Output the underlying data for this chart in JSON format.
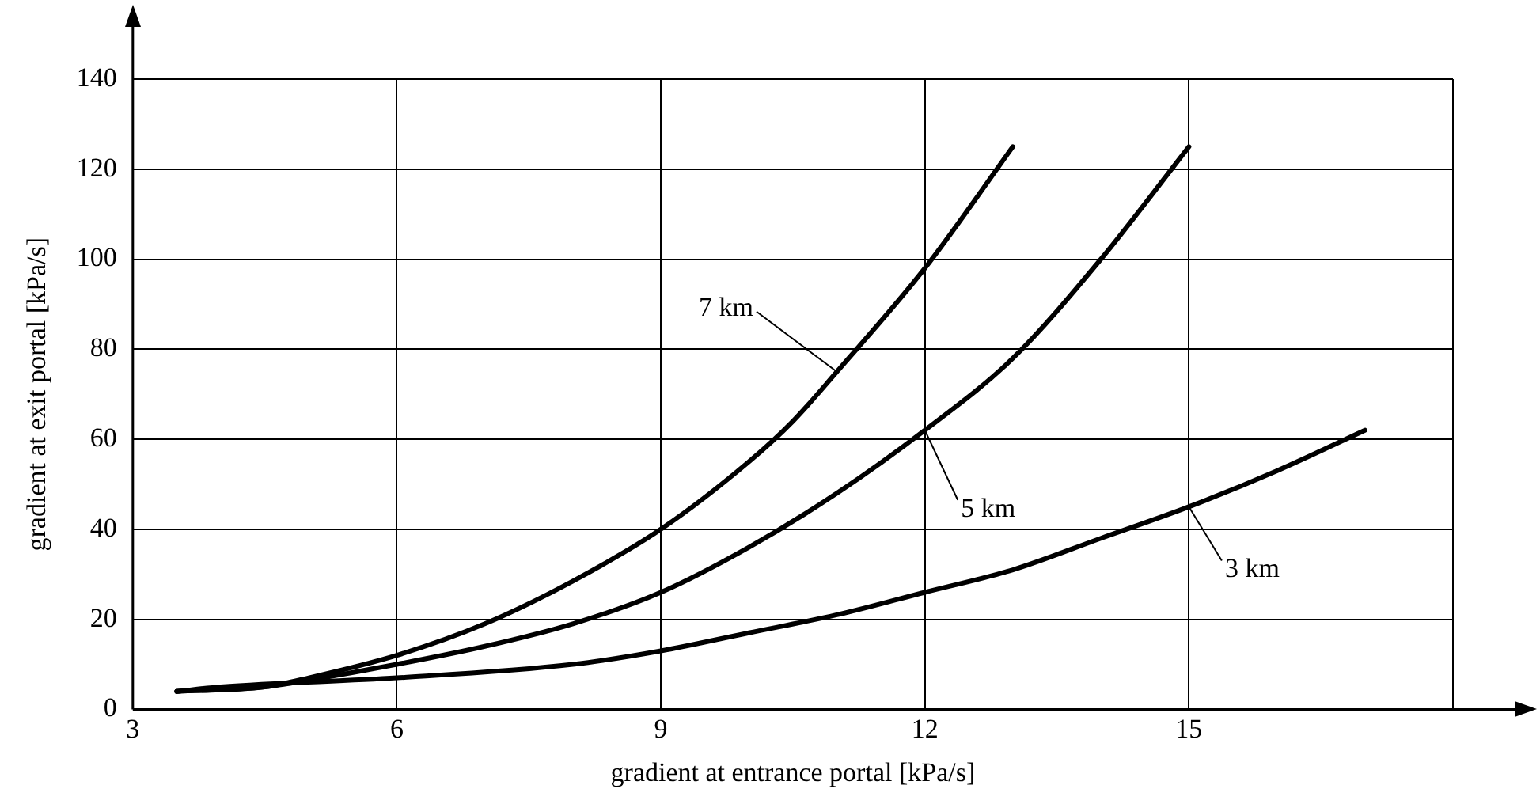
{
  "chart_data": {
    "type": "line",
    "xlabel": "gradient at entrance portal [kPa/s]",
    "ylabel": "gradient at exit portal [kPa/s]",
    "xlim": [
      3,
      18
    ],
    "xticks": [
      3,
      6,
      9,
      12,
      15,
      {
        "value": 18,
        "label": null
      }
    ],
    "ylim": [
      0,
      140
    ],
    "yticks": [
      0,
      20,
      40,
      60,
      80,
      100,
      120,
      140
    ],
    "grid": true,
    "legend": false,
    "marker": "none",
    "line_style": "solid",
    "series": [
      {
        "color": "#000000",
        "x": [
          3.5,
          4.5,
          5,
          6,
          7,
          8,
          9,
          10,
          10.5,
          11,
          12,
          13
        ],
        "values": [
          4,
          5,
          7,
          12,
          19,
          28.5,
          40,
          55,
          64,
          75,
          98,
          125
        ]
      },
      {
        "color": "#000000",
        "x": [
          3.5,
          4.5,
          5,
          6,
          7,
          8,
          9,
          10,
          11,
          12,
          13,
          14,
          15
        ],
        "values": [
          4,
          5,
          6.5,
          10,
          14,
          19,
          26,
          36,
          48,
          62,
          78,
          100,
          125
        ]
      },
      {
        "color": "#000000",
        "x": [
          3.5,
          4,
          6,
          8,
          9,
          10,
          11,
          12,
          13,
          14,
          15,
          16,
          17
        ],
        "values": [
          4,
          5,
          7,
          10,
          13,
          17,
          21,
          26,
          31,
          38,
          45,
          53,
          62
        ]
      }
    ],
    "annotations": [
      {
        "text": "7 km",
        "x": 11,
        "y": 75
      },
      {
        "text": "5 km",
        "x": 12,
        "y": 62
      },
      {
        "text": "3 km",
        "x": 15,
        "y": 45
      }
    ]
  }
}
